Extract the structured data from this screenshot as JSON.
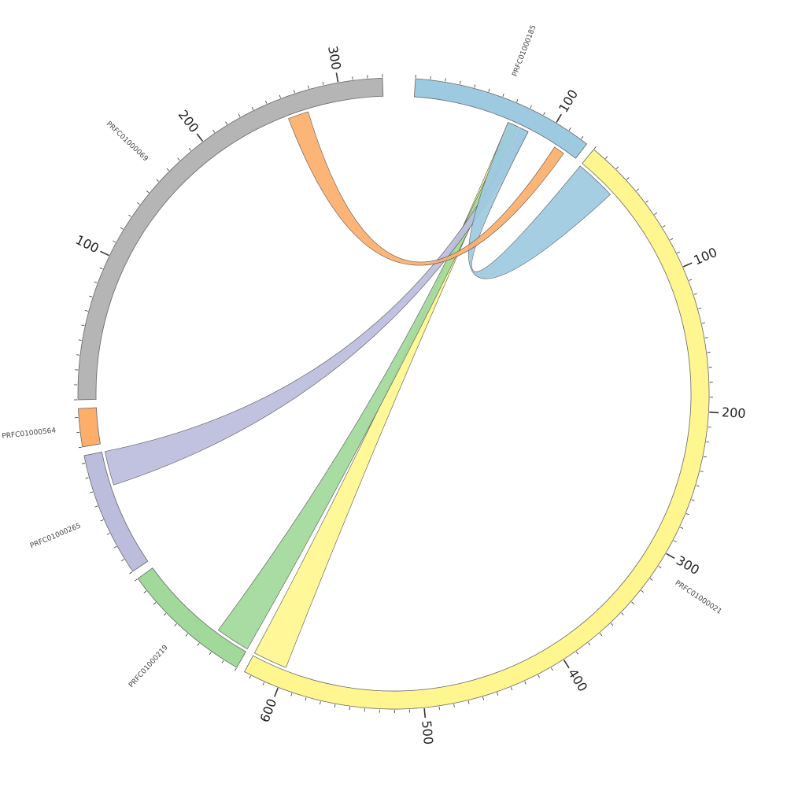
{
  "chart_data": {
    "type": "chord",
    "segments": [
      {
        "id": "PRFC01000185",
        "label": "PRFC01000185",
        "length": 125,
        "color": "#9ecae1",
        "tick_labels": [
          100
        ]
      },
      {
        "id": "PRFC01000021",
        "label": "PRFC01000021",
        "length": 625,
        "color": "#fff68f",
        "tick_labels": [
          100,
          200,
          300,
          400,
          500,
          600
        ]
      },
      {
        "id": "PRFC01000219",
        "label": "PRFC01000219",
        "length": 90,
        "color": "#a1d99b",
        "tick_labels": []
      },
      {
        "id": "PRFC01000265",
        "label": "PRFC01000265",
        "length": 85,
        "color": "#bcbddc",
        "tick_labels": []
      },
      {
        "id": "PRFC01000564",
        "label": "PRFC01000564",
        "length": 26,
        "color": "#fdae6b",
        "tick_labels": []
      },
      {
        "id": "PRFC01000069",
        "label": "PRFC01000069",
        "length": 330,
        "color": "#b5b5b5",
        "tick_labels": [
          100,
          200,
          300
        ]
      }
    ],
    "links": [
      {
        "source": {
          "segment": "PRFC01000185",
          "start": 70,
          "end": 76
        },
        "target": {
          "segment": "PRFC01000021",
          "start": 600,
          "end": 625
        },
        "color": "#fff68f"
      },
      {
        "source": {
          "segment": "PRFC01000185",
          "start": 72,
          "end": 78
        },
        "target": {
          "segment": "PRFC01000219",
          "start": 0,
          "end": 25
        },
        "color": "#a1d99b"
      },
      {
        "source": {
          "segment": "PRFC01000185",
          "start": 80,
          "end": 86
        },
        "target": {
          "segment": "PRFC01000265",
          "start": 60,
          "end": 85
        },
        "color": "#bcbddc"
      },
      {
        "source": {
          "segment": "PRFC01000185",
          "start": 70,
          "end": 86
        },
        "target": {
          "segment": "PRFC01000021",
          "start": 0,
          "end": 30
        },
        "color": "#9ecae1"
      },
      {
        "source": {
          "segment": "PRFC01000185",
          "start": 108,
          "end": 116
        },
        "target": {
          "segment": "PRFC01000069",
          "start": 260,
          "end": 275
        },
        "color": "#fdae6b"
      }
    ]
  }
}
